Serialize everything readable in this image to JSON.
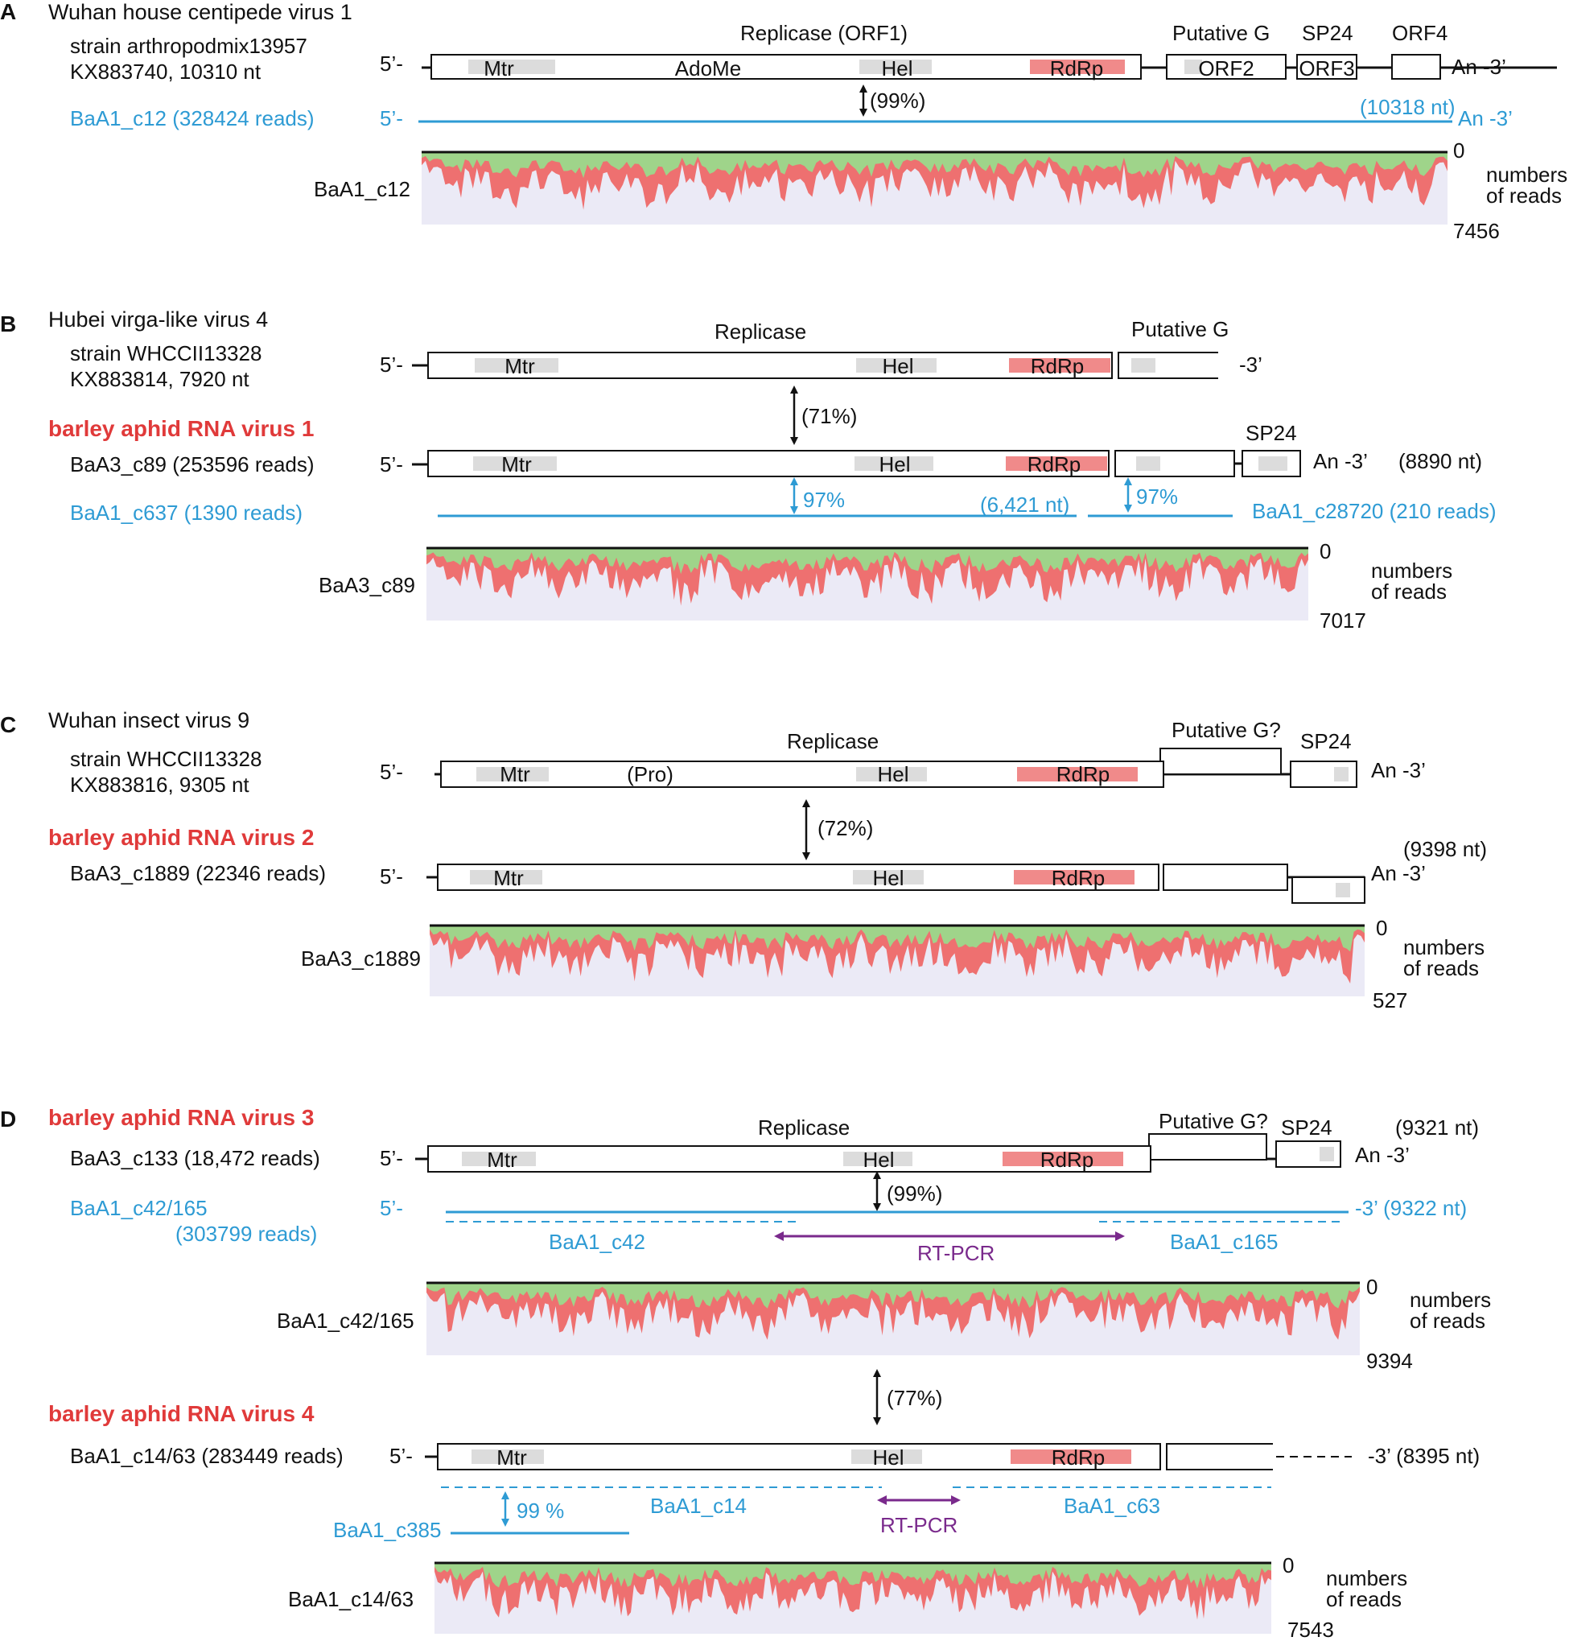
{
  "panelA": {
    "letter": "A",
    "title": "Wuhan house centipede virus 1",
    "strain": "strain arthropodmix13957",
    "accession": "KX883740, 10310 nt",
    "five_prime": "5’-",
    "five_prime_alt": "5’-",
    "replicase": "Replicase (ORF1)",
    "putative_g": "Putative G",
    "sp24": "SP24",
    "orf4": "ORF4",
    "domains": [
      "Mtr",
      "AdoMe",
      "Hel",
      "RdRp"
    ],
    "orf2": "ORF2",
    "orf3": "ORF3",
    "three_prime": "An -3’",
    "identity": "(99%)",
    "contig": "BaA1_c12 (328424 reads)",
    "contig_len": "(10318 nt)",
    "contig_end": "An  -3’",
    "coverage_label": "BaA1_c12",
    "cov_zero": "0",
    "cov_max": "7456",
    "cov_unit_1": "numbers",
    "cov_unit_2": "of reads"
  },
  "panelB": {
    "letter": "B",
    "title": "Hubei virga-like virus 4",
    "strain": "strain WHCCII13328",
    "accession": "KX883814,  7920 nt",
    "five_prime": "5’-",
    "replicase": "Replicase",
    "putative_g": "Putative G",
    "domains": [
      "Mtr",
      "Hel",
      "RdRp"
    ],
    "three_prime_ref": "-3’",
    "identity": "(71%)",
    "virus_name": "barley aphid RNA virus 1",
    "contig": "BaA3_c89 (253596 reads)",
    "five_prime_contig": "5’-",
    "sp24": "SP24",
    "three_prime": "An  -3’",
    "length": "(8890 nt)",
    "blue_contig_1": "BaA1_c637 (1390 reads)",
    "blue_pct_1": "97%",
    "blue_len": "(6,421 nt)",
    "blue_pct_2": "97%",
    "blue_contig_2": "BaA1_c28720 (210 reads)",
    "coverage_label": "BaA3_c89",
    "cov_zero": "0",
    "cov_max": "7017",
    "cov_unit_1": "numbers",
    "cov_unit_2": "of reads"
  },
  "panelC": {
    "letter": "C",
    "title": "Wuhan insect virus 9",
    "strain": "strain WHCCII13328",
    "accession": "KX883816, 9305 nt",
    "five_prime": "5’-",
    "replicase": "Replicase",
    "putative_g": "Putative G?",
    "sp24": "SP24",
    "domains": [
      "Mtr",
      "(Pro)",
      "Hel",
      "RdRp"
    ],
    "three_prime": "An  -3’",
    "identity": "(72%)",
    "virus_name": "barley aphid RNA virus 2",
    "contig": "BaA3_c1889 (22346 reads)",
    "five_prime_contig": "5’-",
    "contig_domains": [
      "Mtr",
      "Hel",
      "RdRp"
    ],
    "length": "(9398 nt)",
    "three_prime_contig": "An  -3’",
    "coverage_label": "BaA3_c1889",
    "cov_zero": "0",
    "cov_max": "527",
    "cov_unit_1": "numbers",
    "cov_unit_2": "of reads"
  },
  "panelD": {
    "letter": "D",
    "virus_name_3": "barley aphid RNA virus 3",
    "replicase": "Replicase",
    "putative_g": "Putative G?",
    "sp24": "SP24",
    "length_3": "(9321 nt)",
    "contig_3": "BaA3_c133 (18,472 reads)",
    "five_prime": "5’-",
    "domains": [
      "Mtr",
      "Hel",
      "RdRp"
    ],
    "three_prime_3": "An  -3’",
    "identity_1": "(99%)",
    "blue_contig_1a": "BaA1_c42/165",
    "blue_contig_1b": "(303799 reads)",
    "five_prime_blue": "5’-",
    "blue_end": "-3’  (9322  nt)",
    "blue_sub_1": "BaA1_c42",
    "rtpcr_1": "RT-PCR",
    "blue_sub_2": "BaA1_c165",
    "coverage_label_1": "BaA1_c42/165",
    "cov1_zero": "0",
    "cov1_max": "9394",
    "cov_unit_1": "numbers",
    "cov_unit_2": "of reads",
    "identity_2": "(77%)",
    "virus_name_4": "barley aphid RNA virus 4",
    "contig_4": "BaA1_c14/63 (283449 reads)",
    "five_prime_4": "5’-",
    "domains_4": [
      "Mtr",
      "Hel",
      "RdRp"
    ],
    "three_prime_4": "-3’ (8395 nt)",
    "blue_pct": "99 %",
    "blue_c385": "BaA1_c385",
    "blue_c14": "BaA1_c14",
    "rtpcr_2": "RT-PCR",
    "blue_c63": "BaA1_c63",
    "coverage_label_2": "BaA1_c14/63",
    "cov2_zero": "0",
    "cov2_max": "7543"
  },
  "colors": {
    "blue_text": "#2e9bd4",
    "red_text": "#e03a3a",
    "purple": "#7a2a8c",
    "coverage_green": "#9fd48a",
    "coverage_red": "#ee7070",
    "domain_gray": "#dcdcdc",
    "domain_pink": "#f08a8a"
  }
}
